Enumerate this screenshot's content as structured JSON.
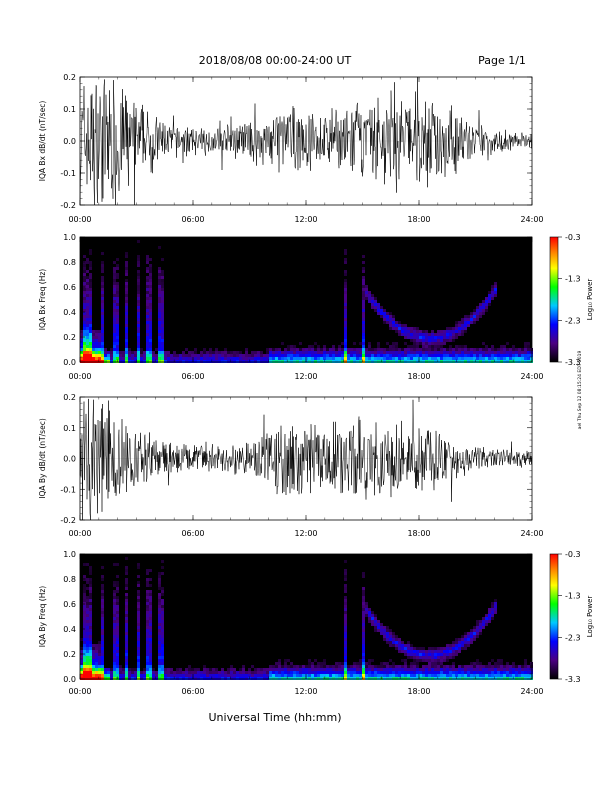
{
  "header": {
    "title": "2018/08/08   00:00-24:00 UT",
    "page": "Page 1/1"
  },
  "footer": {
    "xlabel": "Universal Time (hh:mm)",
    "side_stamp": "ael Thu Sep 12 08:15:24 EDT 2019"
  },
  "colorbar": {
    "label": "Log₁₀ Power",
    "ticks": [
      "-0.3",
      "-1.3",
      "-2.3",
      "-3.3"
    ],
    "range": [
      -3.3,
      -0.3
    ]
  },
  "chart_data": [
    {
      "type": "line",
      "ylabel": "IQA Bx dB/dt (nT/sec)",
      "xlim_hours": [
        0,
        24
      ],
      "ylim": [
        -0.2,
        0.2
      ],
      "x_ticks": [
        "00:00",
        "06:00",
        "12:00",
        "18:00",
        "24:00"
      ],
      "y_ticks": [
        "0.2",
        "0.1",
        "0.0",
        "-0.1",
        "-0.2"
      ],
      "series": [
        {
          "x_hours": [
            0,
            1,
            2,
            3,
            4,
            5,
            6,
            7,
            8,
            9,
            10,
            11,
            12,
            13,
            14,
            15,
            16,
            17,
            18,
            19,
            20,
            21,
            22,
            23,
            24
          ],
          "amplitude": [
            0.2,
            0.2,
            0.2,
            0.12,
            0.08,
            0.05,
            0.04,
            0.04,
            0.05,
            0.06,
            0.08,
            0.12,
            0.08,
            0.08,
            0.1,
            0.12,
            0.13,
            0.15,
            0.15,
            0.14,
            0.1,
            0.05,
            0.04,
            0.03,
            0.02
          ]
        }
      ]
    },
    {
      "type": "heatmap",
      "ylabel": "IQA Bx Freq (Hz)",
      "xlim_hours": [
        0,
        24
      ],
      "ylim": [
        0.0,
        1.0
      ],
      "x_ticks": [
        "00:00",
        "06:00",
        "12:00",
        "18:00",
        "24:00"
      ],
      "y_ticks": [
        "1.0",
        "0.8",
        "0.6",
        "0.4",
        "0.2",
        "0.0"
      ]
    },
    {
      "type": "line",
      "ylabel": "IQA By dB/dt (nT/sec)",
      "xlim_hours": [
        0,
        24
      ],
      "ylim": [
        -0.2,
        0.2
      ],
      "x_ticks": [
        "00:00",
        "06:00",
        "12:00",
        "18:00",
        "24:00"
      ],
      "y_ticks": [
        "0.2",
        "0.1",
        "0.0",
        "-0.1",
        "-0.2"
      ],
      "series": [
        {
          "x_hours": [
            0,
            1,
            2,
            3,
            4,
            5,
            6,
            7,
            8,
            9,
            10,
            11,
            12,
            13,
            14,
            15,
            16,
            17,
            18,
            19,
            20,
            21,
            22,
            23,
            24
          ],
          "amplitude": [
            0.2,
            0.2,
            0.16,
            0.1,
            0.07,
            0.05,
            0.04,
            0.04,
            0.05,
            0.06,
            0.1,
            0.15,
            0.12,
            0.1,
            0.12,
            0.13,
            0.12,
            0.12,
            0.1,
            0.1,
            0.06,
            0.04,
            0.03,
            0.03,
            0.02
          ]
        }
      ]
    },
    {
      "type": "heatmap",
      "ylabel": "IQA By Freq (Hz)",
      "xlim_hours": [
        0,
        24
      ],
      "ylim": [
        0.0,
        1.0
      ],
      "x_ticks": [
        "00:00",
        "06:00",
        "12:00",
        "18:00",
        "24:00"
      ],
      "y_ticks": [
        "1.0",
        "0.8",
        "0.6",
        "0.4",
        "0.2",
        "0.0"
      ]
    }
  ]
}
